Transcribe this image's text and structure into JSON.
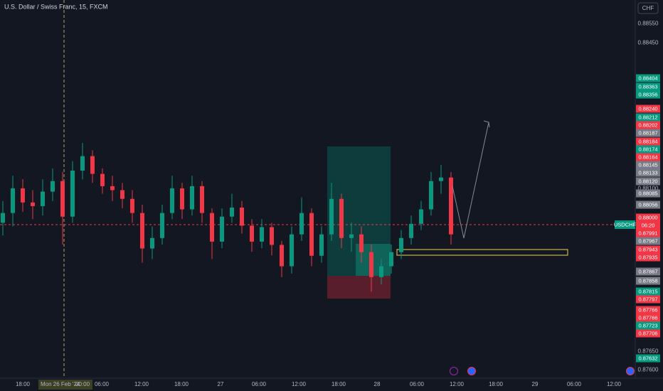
{
  "header": {
    "title": "U.S. Dollar / Swiss Franc, 15, FXCM",
    "currency": "CHF"
  },
  "chart_data": {
    "type": "candlestick",
    "up_color": "#089981",
    "down_color": "#f23645",
    "ylim": [
      0.87575,
      0.88605
    ],
    "candles": [
      [
        0.88,
        0.8806,
        0.87965,
        0.88027
      ],
      [
        0.88027,
        0.8813,
        0.8799,
        0.88095
      ],
      [
        0.88095,
        0.8812,
        0.8803,
        0.88056
      ],
      [
        0.88056,
        0.8809,
        0.8801,
        0.88046
      ],
      [
        0.88046,
        0.8812,
        0.8802,
        0.88086
      ],
      [
        0.88086,
        0.8815,
        0.8806,
        0.88115
      ],
      [
        0.88115,
        0.8814,
        0.8794,
        0.88017
      ],
      [
        0.88017,
        0.8817,
        0.88,
        0.88144
      ],
      [
        0.88144,
        0.8822,
        0.8812,
        0.88184
      ],
      [
        0.88184,
        0.882,
        0.8811,
        0.88135
      ],
      [
        0.88135,
        0.8815,
        0.8808,
        0.88101
      ],
      [
        0.88101,
        0.8813,
        0.8806,
        0.8809
      ],
      [
        0.8809,
        0.8811,
        0.8804,
        0.88066
      ],
      [
        0.88066,
        0.8809,
        0.88,
        0.88027
      ],
      [
        0.88027,
        0.8805,
        0.8789,
        0.87929
      ],
      [
        0.87929,
        0.8799,
        0.879,
        0.87958
      ],
      [
        0.87958,
        0.8805,
        0.8794,
        0.88027
      ],
      [
        0.88027,
        0.8813,
        0.8801,
        0.88095
      ],
      [
        0.88095,
        0.8811,
        0.8801,
        0.88037
      ],
      [
        0.88037,
        0.8813,
        0.8802,
        0.88101
      ],
      [
        0.88101,
        0.88115,
        0.88,
        0.88027
      ],
      [
        0.88027,
        0.8804,
        0.879,
        0.87948
      ],
      [
        0.87948,
        0.8804,
        0.8793,
        0.88017
      ],
      [
        0.88017,
        0.8808,
        0.88,
        0.88042
      ],
      [
        0.88042,
        0.8806,
        0.8797,
        0.87992
      ],
      [
        0.87992,
        0.8801,
        0.8792,
        0.87948
      ],
      [
        0.87948,
        0.8801,
        0.8793,
        0.87988
      ],
      [
        0.87988,
        0.88,
        0.8791,
        0.87939
      ],
      [
        0.87939,
        0.8795,
        0.8785,
        0.8788
      ],
      [
        0.8788,
        0.8799,
        0.8786,
        0.87968
      ],
      [
        0.87968,
        0.8807,
        0.8795,
        0.88027
      ],
      [
        0.88027,
        0.8804,
        0.8788,
        0.87909
      ],
      [
        0.87909,
        0.8799,
        0.8789,
        0.87968
      ],
      [
        0.87968,
        0.8811,
        0.8795,
        0.88066
      ],
      [
        0.88066,
        0.8808,
        0.8793,
        0.87958
      ],
      [
        0.87958,
        0.88,
        0.8792,
        0.87968
      ],
      [
        0.87968,
        0.8799,
        0.8789,
        0.87919
      ],
      [
        0.87919,
        0.8794,
        0.8781,
        0.8785
      ],
      [
        0.8785,
        0.879,
        0.8783,
        0.8788
      ],
      [
        0.8788,
        0.8794,
        0.8786,
        0.87919
      ],
      [
        0.87919,
        0.8798,
        0.879,
        0.87958
      ],
      [
        0.87958,
        0.8802,
        0.8794,
        0.87997
      ],
      [
        0.87997,
        0.8806,
        0.8798,
        0.88037
      ],
      [
        0.88037,
        0.8814,
        0.8802,
        0.88115
      ],
      [
        0.88115,
        0.8816,
        0.8808,
        0.88125
      ],
      [
        0.88125,
        0.8814,
        0.8794,
        0.87968
      ]
    ]
  },
  "price_tags": [
    {
      "label": "0.88550",
      "color": null
    },
    {
      "label": "0.88450",
      "color": null
    },
    {
      "label": "0.88404",
      "color": "#089981"
    },
    {
      "label": "0.88363",
      "color": "#089981"
    },
    {
      "label": "0.88356",
      "color": "#089981"
    },
    {
      "label": "0.88240",
      "color": "#f23645"
    },
    {
      "label": "0.88212",
      "color": "#089981"
    },
    {
      "label": "0.88202",
      "color": "#f23645"
    },
    {
      "label": "0.88187",
      "color": "#787b86"
    },
    {
      "label": "0.88184",
      "color": "#f23645"
    },
    {
      "label": "0.88174",
      "color": "#089981"
    },
    {
      "label": "0.88164",
      "color": "#f23645"
    },
    {
      "label": "0.88145",
      "color": "#787b86"
    },
    {
      "label": "0.88133",
      "color": "#787b86"
    },
    {
      "label": "0.88120",
      "color": "#787b86"
    },
    {
      "label": "0.88100",
      "color": null
    },
    {
      "label": "0.88085",
      "color": "#787b86"
    },
    {
      "label": "0.88056",
      "color": "#787b86"
    },
    {
      "label": "0.88000",
      "color": "#f23645"
    },
    {
      "label": "06:20",
      "color": "#f23645"
    },
    {
      "label": "0.87991",
      "color": "#f23645"
    },
    {
      "label": "0.87967",
      "color": "#787b86"
    },
    {
      "label": "0.87943",
      "color": "#f23645"
    },
    {
      "label": "0.87935",
      "color": "#f23645"
    },
    {
      "label": "0.87867",
      "color": "#787b86"
    },
    {
      "label": "0.87858",
      "color": "#787b86"
    },
    {
      "label": "0.87815",
      "color": "#089981"
    },
    {
      "label": "0.87797",
      "color": "#f23645"
    },
    {
      "label": "0.87766",
      "color": "#f23645"
    },
    {
      "label": "0.87766",
      "color": "#f23645"
    },
    {
      "label": "0.87723",
      "color": "#089981"
    },
    {
      "label": "0.87706",
      "color": "#f23645"
    },
    {
      "label": "0.87650",
      "color": null
    },
    {
      "label": "0.87632",
      "color": "#089981"
    },
    {
      "label": "0.87600",
      "color": null
    }
  ],
  "symbol_tag": "USDCHF",
  "time_axis": [
    "18:00",
    "06:00",
    "12:00",
    "18:00",
    "27",
    "06:00",
    "12:00",
    "18:00",
    "28",
    "06:00",
    "12:00",
    "18:00",
    "29",
    "06:00",
    "12:00"
  ],
  "cursor_label": {
    "date": "Mon 26 Feb '24",
    "time": "00:00"
  }
}
